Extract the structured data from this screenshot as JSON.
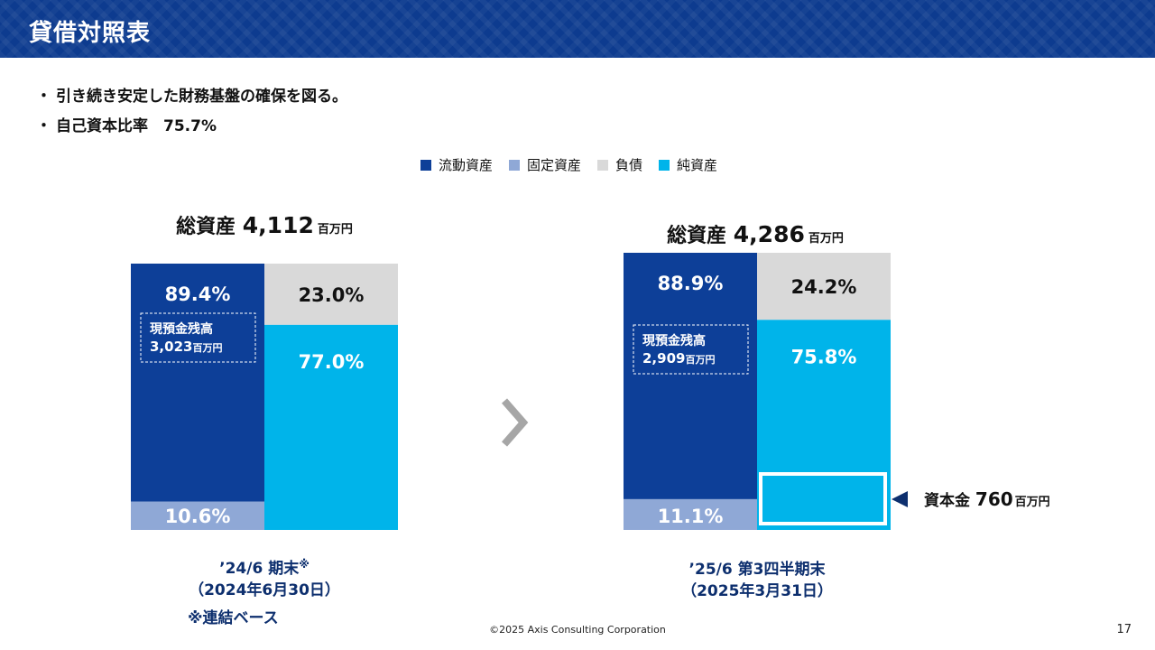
{
  "header": {
    "title": "貸借対照表"
  },
  "bullets": [
    "引き続き安定した財務基盤の確保を図る。",
    "自己資本比率　75.7%"
  ],
  "legend": [
    {
      "label": "流動資産",
      "color": "#0d3f98"
    },
    {
      "label": "固定資産",
      "color": "#8fa8d6"
    },
    {
      "label": "負債",
      "color": "#d9d9d9"
    },
    {
      "label": "純資産",
      "color": "#00b4ea"
    }
  ],
  "chart_data": [
    {
      "type": "bar",
      "stacked": true,
      "title_prefix": "総資産",
      "total": "4,112",
      "unit": "百万円",
      "assets": {
        "current": 89.4,
        "fixed": 10.6,
        "current_label": "89.4%",
        "fixed_label": "10.6%"
      },
      "liabilities_equity": {
        "liabilities": 23.0,
        "net_assets": 77.0,
        "liabilities_label": "23.0%",
        "net_assets_label": "77.0%"
      },
      "cash_box": {
        "line1": "現預金残高",
        "value": "3,023",
        "unit": "百万円"
      },
      "period_line1": "’24/6 期末",
      "period_mark": "※",
      "period_line2": "（2024年6月30日）",
      "note": "※連結ベース"
    },
    {
      "type": "bar",
      "stacked": true,
      "title_prefix": "総資産",
      "total": "4,286",
      "unit": "百万円",
      "assets": {
        "current": 88.9,
        "fixed": 11.1,
        "current_label": "88.9%",
        "fixed_label": "11.1%"
      },
      "liabilities_equity": {
        "liabilities": 24.2,
        "net_assets": 75.8,
        "liabilities_label": "24.2%",
        "net_assets_label": "75.8%"
      },
      "cash_box": {
        "line1": "現預金残高",
        "value": "2,909",
        "unit": "百万円"
      },
      "capital": {
        "label": "資本金",
        "value": "760",
        "unit": "百万円"
      },
      "period_line1": "’25/6 第3四半期末",
      "period_line2": "（2025年3月31日）"
    }
  ],
  "footer": {
    "copyright": "©2025 Axis Consulting Corporation",
    "page": "17"
  }
}
